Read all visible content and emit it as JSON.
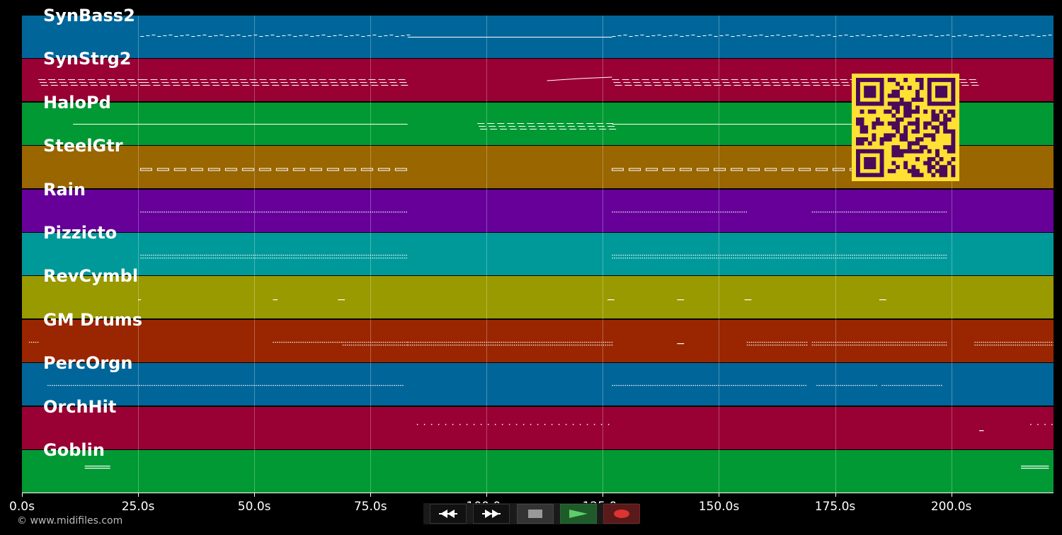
{
  "app": {
    "copyright": "© www.midifiles.com"
  },
  "colors": {
    "background": "#000000",
    "note": "#ffffff",
    "qr_fg": "#4a0a5a",
    "qr_bg": "#ffe033"
  },
  "timeline": {
    "max_seconds": 222,
    "ticks": [
      {
        "value": 0,
        "label": "0.0s"
      },
      {
        "value": 25,
        "label": "25.0s"
      },
      {
        "value": 50,
        "label": "50.0s"
      },
      {
        "value": 75,
        "label": "75.0s"
      },
      {
        "value": 100,
        "label": "100.0s"
      },
      {
        "value": 125,
        "label": "125.0s"
      },
      {
        "value": 150,
        "label": "150.0s"
      },
      {
        "value": 175,
        "label": "175.0s"
      },
      {
        "value": 200,
        "label": "200.0s"
      }
    ]
  },
  "tracks": [
    {
      "name": "SynBass2",
      "color": "#00669a",
      "segments": [
        [
          25.5,
          83,
          "dash"
        ],
        [
          83,
          127,
          "line"
        ],
        [
          127,
          222,
          "dash"
        ]
      ]
    },
    {
      "name": "SynStrg2",
      "color": "#990033",
      "segments": [
        [
          3.5,
          25,
          "multi"
        ],
        [
          25.5,
          83,
          "multi"
        ],
        [
          113,
          127,
          "rise"
        ],
        [
          127,
          205,
          "multi"
        ]
      ]
    },
    {
      "name": "HaloPd",
      "color": "#009933",
      "segments": [
        [
          11,
          83,
          "line"
        ],
        [
          98,
          127,
          "multi"
        ],
        [
          127,
          180,
          "line"
        ]
      ]
    },
    {
      "name": "SteelGtr",
      "color": "#996600",
      "segments": [
        [
          25.5,
          83,
          "blocks"
        ],
        [
          127,
          180,
          "blocks"
        ]
      ]
    },
    {
      "name": "Rain",
      "color": "#660099",
      "segments": [
        [
          25.5,
          83,
          "dots"
        ],
        [
          127,
          156,
          "dots"
        ],
        [
          170,
          199,
          "dots"
        ]
      ]
    },
    {
      "name": "Pizzicto",
      "color": "#009999",
      "segments": [
        [
          25.5,
          83,
          "dots2"
        ],
        [
          127,
          199,
          "dots2"
        ]
      ]
    },
    {
      "name": "RevCymbl",
      "color": "#999900",
      "segments": [
        [
          25,
          25.3,
          "tick"
        ],
        [
          54,
          55,
          "tick"
        ],
        [
          68,
          69.5,
          "tick"
        ],
        [
          126,
          127.5,
          "tick"
        ],
        [
          141,
          142.5,
          "tick"
        ],
        [
          155.5,
          157,
          "tick"
        ],
        [
          184.5,
          186,
          "tick"
        ]
      ]
    },
    {
      "name": "GM Drums",
      "color": "#992600",
      "segments": [
        [
          1.5,
          3.5,
          "dots"
        ],
        [
          54,
          69,
          "dots"
        ],
        [
          69,
          83,
          "dots2"
        ],
        [
          83,
          127,
          "dots2"
        ],
        [
          141,
          142.5,
          "tick"
        ],
        [
          156,
          169,
          "dots2"
        ],
        [
          170,
          199,
          "dots2"
        ],
        [
          205,
          222,
          "dots2"
        ]
      ]
    },
    {
      "name": "PercOrgn",
      "color": "#00669a",
      "segments": [
        [
          5.5,
          82,
          "dots"
        ],
        [
          127,
          169,
          "dots"
        ],
        [
          171,
          184,
          "dots"
        ],
        [
          185,
          198,
          "dots"
        ]
      ]
    },
    {
      "name": "OrchHit",
      "color": "#990033",
      "segments": [
        [
          85,
          127,
          "sparse"
        ],
        [
          206,
          207,
          "tick"
        ],
        [
          217,
          222,
          "sparse"
        ]
      ]
    },
    {
      "name": "Goblin",
      "color": "#009933",
      "segments": [
        [
          13.5,
          19,
          "double"
        ],
        [
          215,
          221,
          "double"
        ]
      ]
    }
  ],
  "transport": {
    "buttons": [
      {
        "name": "rewind-button",
        "icon": "rewind-icon",
        "bg": "#111111"
      },
      {
        "name": "fast-forward-button",
        "icon": "fast-forward-icon",
        "bg": "#111111"
      },
      {
        "name": "stop-button",
        "icon": "stop-icon",
        "bg": "#333333"
      },
      {
        "name": "play-button",
        "icon": "play-icon",
        "bg": "#1f5a2a"
      },
      {
        "name": "record-button",
        "icon": "record-icon",
        "bg": "#5a1a1a"
      }
    ]
  }
}
